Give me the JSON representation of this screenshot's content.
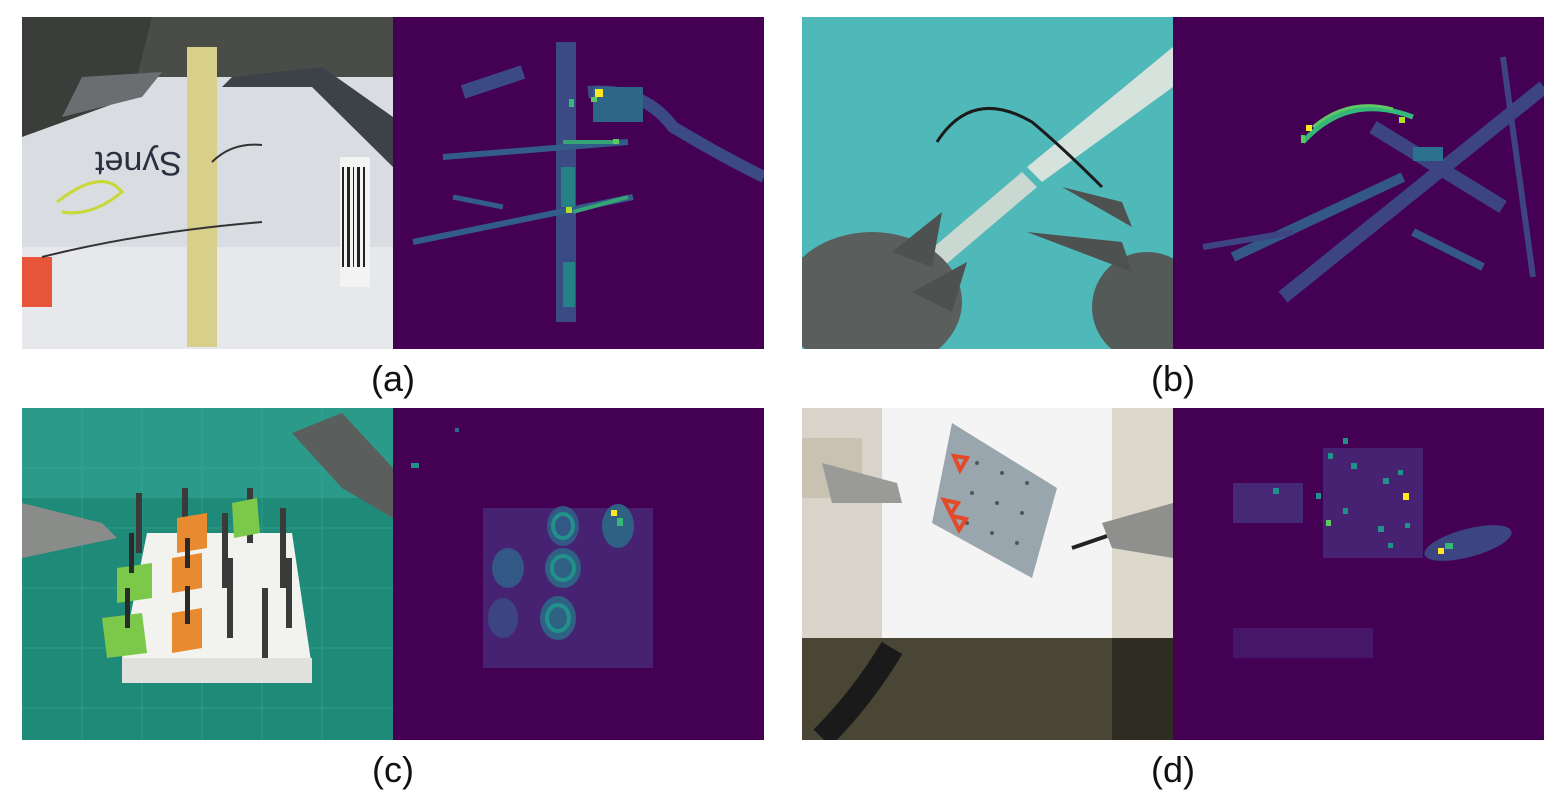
{
  "panels": [
    {
      "id": "a",
      "caption": "(a)",
      "scene": "phantom-suturing-board-with-needle-drivers",
      "overlay_text": "Synet"
    },
    {
      "id": "b",
      "caption": "(b)",
      "scene": "curved-needle-on-cyan-pad-with-tubes"
    },
    {
      "id": "c",
      "caption": "(c)",
      "scene": "peg-transfer-board-green-mat"
    },
    {
      "id": "d",
      "caption": "(d)",
      "scene": "robot-arms-with-orange-rings-on-peg-board"
    }
  ],
  "colors": {
    "heatmap_background": "#440154",
    "heatmap_low": "#3b528b",
    "heatmap_mid": "#21918c",
    "heatmap_high": "#5ec962",
    "heatmap_peak": "#fde725"
  }
}
